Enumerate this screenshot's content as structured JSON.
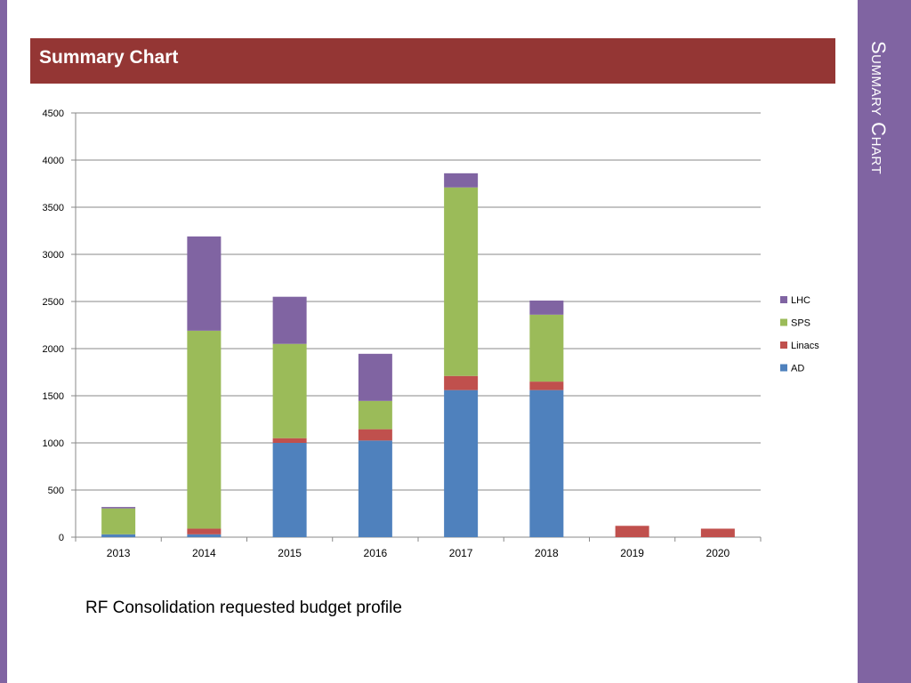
{
  "slide": {
    "title": "Summary Chart",
    "side_title": "Summary Chart",
    "caption": "RF Consolidation requested budget profile"
  },
  "colors": {
    "accent_purple": "#8064a2",
    "title_red": "#943634",
    "AD": "#4f81bd",
    "Linacs": "#c0504d",
    "SPS": "#9bbb59",
    "LHC": "#8064a2"
  },
  "chart_data": {
    "type": "bar",
    "stacked": true,
    "title": "",
    "xlabel": "",
    "ylabel": "",
    "categories": [
      "2013",
      "2014",
      "2015",
      "2016",
      "2017",
      "2018",
      "2019",
      "2020"
    ],
    "ylim": [
      0,
      4500
    ],
    "yticks": [
      0,
      500,
      1000,
      1500,
      2000,
      2500,
      3000,
      3500,
      4000,
      4500
    ],
    "grid": true,
    "legend_position": "right",
    "legend_order": [
      "LHC",
      "SPS",
      "Linacs",
      "AD"
    ],
    "series": [
      {
        "name": "AD",
        "values": [
          30,
          30,
          1000,
          1025,
          1560,
          1560,
          0,
          0
        ]
      },
      {
        "name": "Linacs",
        "values": [
          0,
          60,
          50,
          120,
          150,
          90,
          120,
          90
        ]
      },
      {
        "name": "SPS",
        "values": [
          275,
          2100,
          1000,
          300,
          2000,
          710,
          0,
          0
        ]
      },
      {
        "name": "LHC",
        "values": [
          15,
          1000,
          500,
          500,
          150,
          150,
          0,
          0
        ]
      }
    ]
  }
}
